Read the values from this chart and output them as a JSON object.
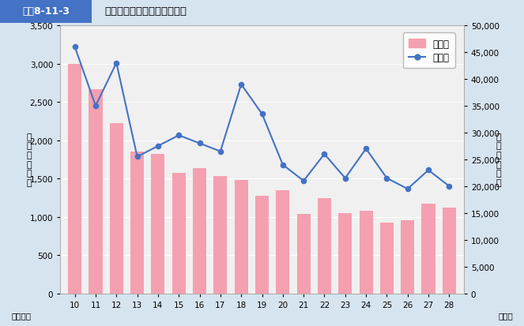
{
  "title_label": "図表8-11-3",
  "title_text": "食中毒対策の事件件数の推移",
  "years": [
    10,
    11,
    12,
    13,
    14,
    15,
    16,
    17,
    18,
    19,
    20,
    21,
    22,
    23,
    24,
    25,
    26,
    27,
    28
  ],
  "incidents": [
    3000,
    2670,
    2220,
    1850,
    1820,
    1570,
    1640,
    1530,
    1480,
    1270,
    1350,
    1040,
    1240,
    1050,
    1080,
    920,
    950,
    1170,
    1120
  ],
  "patients": [
    46000,
    35000,
    43000,
    25500,
    27500,
    29500,
    28000,
    26500,
    39000,
    33500,
    24000,
    21000,
    26000,
    21500,
    27000,
    21500,
    19500,
    23000,
    20000
  ],
  "bar_color": "#f4a0b0",
  "line_color": "#4472c4",
  "bg_color": "#d6e4f0",
  "plot_bg_color": "#f0f0f0",
  "header_bg": "#4472c4",
  "header_text_color": "white",
  "left_ylim": [
    0,
    3500
  ],
  "right_ylim": [
    0,
    50000
  ],
  "left_yticks": [
    0,
    500,
    1000,
    1500,
    2000,
    2500,
    3000,
    3500
  ],
  "right_yticks": [
    0,
    5000,
    10000,
    15000,
    20000,
    25000,
    30000,
    35000,
    40000,
    45000,
    50000
  ],
  "left_ylabel": "事\n件\n数\n（\n件\n）",
  "right_ylabel": "患\n者\n数\n（\n人\n）",
  "xlabel_left": "（平成）",
  "xlabel_right": "（年）",
  "legend_bar": "事件数",
  "legend_line": "患者数"
}
